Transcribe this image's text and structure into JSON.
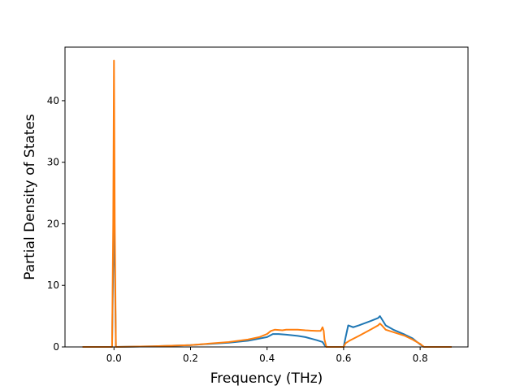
{
  "chart_data": {
    "type": "line",
    "title": "",
    "xlabel": "Frequency (THz)",
    "ylabel": "Partial Density of States",
    "xlim": [
      -0.128,
      0.925
    ],
    "ylim": [
      0,
      48.7
    ],
    "xticks": [
      0.0,
      0.2,
      0.4,
      0.6,
      0.8
    ],
    "xtick_labels": [
      "0.0",
      "0.2",
      "0.4",
      "0.6",
      "0.8"
    ],
    "yticks": [
      0,
      10,
      20,
      30,
      40
    ],
    "ytick_labels": [
      "0",
      "10",
      "20",
      "30",
      "40"
    ],
    "grid": false,
    "legend": "none",
    "series": [
      {
        "color": "#1f77b4",
        "x": [
          -0.08,
          -0.005,
          -0.002,
          0.0,
          0.002,
          0.005,
          0.1,
          0.2,
          0.3,
          0.35,
          0.4,
          0.415,
          0.43,
          0.45,
          0.48,
          0.5,
          0.53,
          0.545,
          0.55,
          0.555,
          0.6,
          0.605,
          0.612,
          0.625,
          0.64,
          0.67,
          0.69,
          0.695,
          0.7,
          0.71,
          0.73,
          0.76,
          0.78,
          0.8,
          0.81,
          0.88
        ],
        "y": [
          0,
          0,
          14,
          25,
          14,
          0,
          0.1,
          0.3,
          0.7,
          1.0,
          1.6,
          2.1,
          2.1,
          2.0,
          1.8,
          1.6,
          1.1,
          0.8,
          0.3,
          0,
          0,
          1.5,
          3.5,
          3.2,
          3.5,
          4.2,
          4.7,
          5.0,
          4.5,
          3.5,
          2.8,
          2.0,
          1.4,
          0.4,
          0,
          0
        ]
      },
      {
        "color": "#ff7f0e",
        "x": [
          -0.08,
          -0.005,
          -0.002,
          0.0,
          0.002,
          0.005,
          0.1,
          0.2,
          0.3,
          0.35,
          0.38,
          0.4,
          0.41,
          0.42,
          0.44,
          0.45,
          0.48,
          0.5,
          0.53,
          0.54,
          0.545,
          0.548,
          0.55,
          0.555,
          0.6,
          0.605,
          0.615,
          0.64,
          0.67,
          0.69,
          0.695,
          0.7,
          0.71,
          0.73,
          0.76,
          0.78,
          0.8,
          0.81,
          0.88
        ],
        "y": [
          0,
          0,
          20,
          46.5,
          20,
          0,
          0.1,
          0.3,
          0.8,
          1.2,
          1.6,
          2.1,
          2.6,
          2.8,
          2.7,
          2.8,
          2.8,
          2.7,
          2.6,
          2.6,
          3.2,
          2.6,
          1.2,
          0,
          0,
          0.6,
          1.0,
          1.8,
          2.8,
          3.5,
          3.8,
          3.5,
          2.8,
          2.4,
          1.8,
          1.2,
          0.5,
          0,
          0
        ]
      }
    ]
  }
}
